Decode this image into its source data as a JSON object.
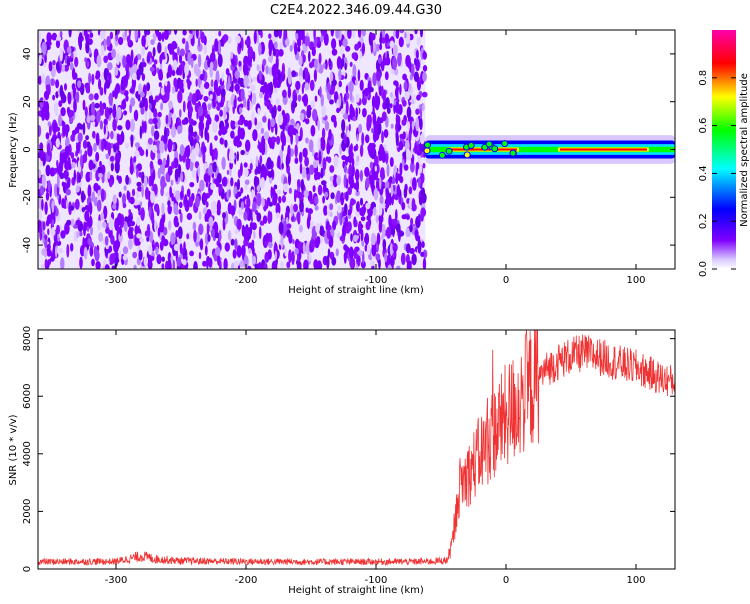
{
  "title": "C2E4.2022.346.09.44.G30",
  "chart_data": [
    {
      "type": "heatmap",
      "xlabel": "Height of straight line (km)",
      "ylabel": "Frequency (Hz)",
      "xlim": [
        -360,
        130
      ],
      "ylim": [
        -50,
        50
      ],
      "xticks": [
        -300,
        -200,
        -100,
        0,
        100
      ],
      "yticks": [
        -40,
        -20,
        0,
        20,
        40
      ],
      "noise_region_x": [
        -360,
        -62
      ],
      "signal_band": {
        "x": [
          -62,
          130
        ],
        "center_freq_hz": 0,
        "half_width_hz": 2.5,
        "hot_segments_x": [
          [
            -45,
            -10
          ],
          [
            -10,
            10
          ],
          [
            40,
            110
          ]
        ]
      },
      "colorbar": {
        "label": "Normalized spectral amplitude",
        "range": [
          0.0,
          1.0
        ],
        "ticks": [
          "0.0",
          "0.2",
          "0.4",
          "0.6",
          "0.8"
        ],
        "colors": [
          "#ffffff",
          "#7f00ff",
          "#0000ff",
          "#00ffff",
          "#00ff00",
          "#ffff00",
          "#ff0000",
          "#ff00aa"
        ]
      }
    },
    {
      "type": "line",
      "xlabel": "Height of straight line (km)",
      "ylabel": "SNR (10 * v/v)",
      "xlim": [
        -360,
        130
      ],
      "ylim": [
        0,
        8300
      ],
      "xticks": [
        -300,
        -200,
        -100,
        0,
        100
      ],
      "yticks": [
        0,
        2000,
        4000,
        6000,
        8000
      ],
      "color": "#f03232",
      "series": [
        {
          "x": [
            -360,
            -300,
            -280,
            -270,
            -250,
            -200,
            -150,
            -100,
            -60,
            -45,
            -40,
            -37,
            -35,
            -30,
            -25,
            -20,
            -15,
            -10,
            -5,
            0,
            10,
            20,
            30,
            40,
            50,
            60,
            70,
            80,
            90,
            100,
            110,
            120,
            130
          ],
          "y": [
            250,
            260,
            450,
            350,
            280,
            260,
            250,
            250,
            260,
            300,
            1200,
            2500,
            3000,
            3200,
            3600,
            4000,
            4300,
            4700,
            5000,
            5300,
            5800,
            6400,
            6900,
            7200,
            7400,
            7500,
            7400,
            7250,
            7100,
            7000,
            6800,
            6600,
            6500
          ]
        }
      ]
    }
  ]
}
